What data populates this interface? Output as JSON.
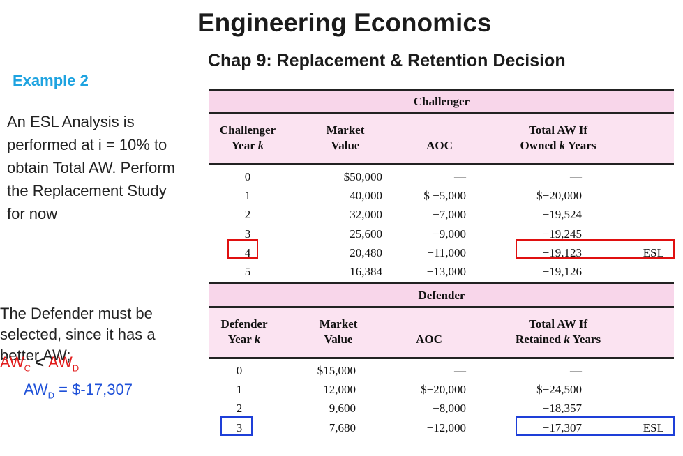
{
  "title": "Engineering Economics",
  "subtitle": "Chap 9: Replacement & Retention Decision",
  "example_label": "Example 2",
  "description": "An ESL Analysis is performed at i = 10% to obtain Total AW. Perform the Replacement Study for now",
  "conclusion": "The Defender must be selected, since it has a better AW;",
  "aw_compare": {
    "left": "AW",
    "left_sub": "C",
    "op": " < ",
    "right": "AW",
    "right_sub": "D"
  },
  "aw_value": {
    "prefix": "AW",
    "sub": "D",
    "rest": " = $-17,307"
  },
  "challenger": {
    "band": "Challenger",
    "headers": {
      "year1": "Challenger",
      "year2": "Year k",
      "mv1": "Market",
      "mv2": "Value",
      "aoc": "AOC",
      "aw1": "Total AW If",
      "aw2": "Owned k Years"
    },
    "rows": [
      {
        "year": "0",
        "mv": "$50,000",
        "aoc": "—",
        "aw": "—",
        "esl": ""
      },
      {
        "year": "1",
        "mv": "40,000",
        "aoc": "$ −5,000",
        "aw": "$−20,000",
        "esl": ""
      },
      {
        "year": "2",
        "mv": "32,000",
        "aoc": "−7,000",
        "aw": "−19,524",
        "esl": ""
      },
      {
        "year": "3",
        "mv": "25,600",
        "aoc": "−9,000",
        "aw": "−19,245",
        "esl": ""
      },
      {
        "year": "4",
        "mv": "20,480",
        "aoc": "−11,000",
        "aw": "−19,123",
        "esl": "ESL"
      },
      {
        "year": "5",
        "mv": "16,384",
        "aoc": "−13,000",
        "aw": "−19,126",
        "esl": ""
      }
    ]
  },
  "defender": {
    "band": "Defender",
    "headers": {
      "year1": "Defender",
      "year2": "Year k",
      "mv1": "Market",
      "mv2": "Value",
      "aoc": "AOC",
      "aw1": "Total AW If",
      "aw2": "Retained k Years"
    },
    "rows": [
      {
        "year": "0",
        "mv": "$15,000",
        "aoc": "—",
        "aw": "—",
        "esl": ""
      },
      {
        "year": "1",
        "mv": "12,000",
        "aoc": "$−20,000",
        "aw": "$−24,500",
        "esl": ""
      },
      {
        "year": "2",
        "mv": "9,600",
        "aoc": "−8,000",
        "aw": "−18,357",
        "esl": ""
      },
      {
        "year": "3",
        "mv": "7,680",
        "aoc": "−12,000",
        "aw": "−17,307",
        "esl": "ESL"
      }
    ]
  },
  "colors": {
    "example": "#1ea3e0",
    "red_highlight": "#e01010",
    "blue_highlight": "#1e3fd8",
    "table_band": "#f8d6ea",
    "table_header": "#fbe3f1"
  }
}
